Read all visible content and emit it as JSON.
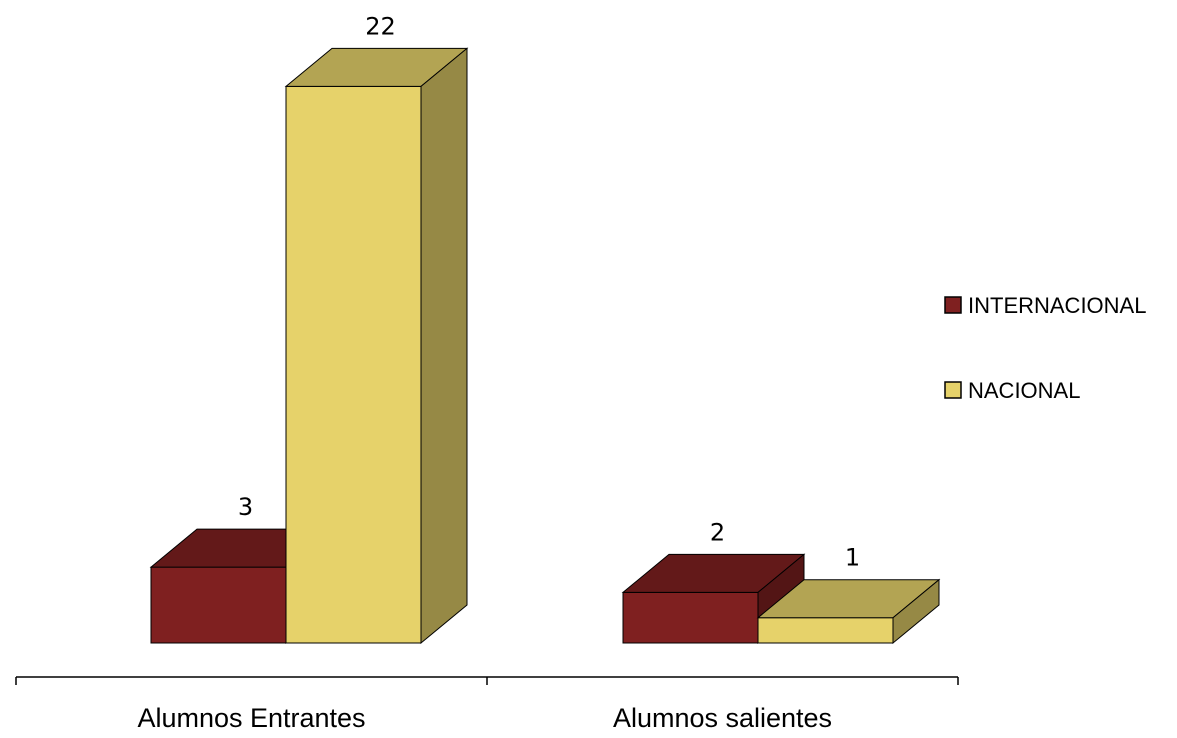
{
  "chart_data": {
    "type": "bar",
    "style": "3d-clustered-column",
    "categories": [
      "Alumnos Entrantes",
      "Alumnos salientes"
    ],
    "series": [
      {
        "name": "INTERNACIONAL",
        "color": "#7f2020",
        "values": [
          3,
          2
        ]
      },
      {
        "name": "NACIONAL",
        "color": "#e6d26a",
        "values": [
          22,
          1
        ]
      }
    ],
    "data_labels": true,
    "legend_position": "right",
    "grid": false
  }
}
